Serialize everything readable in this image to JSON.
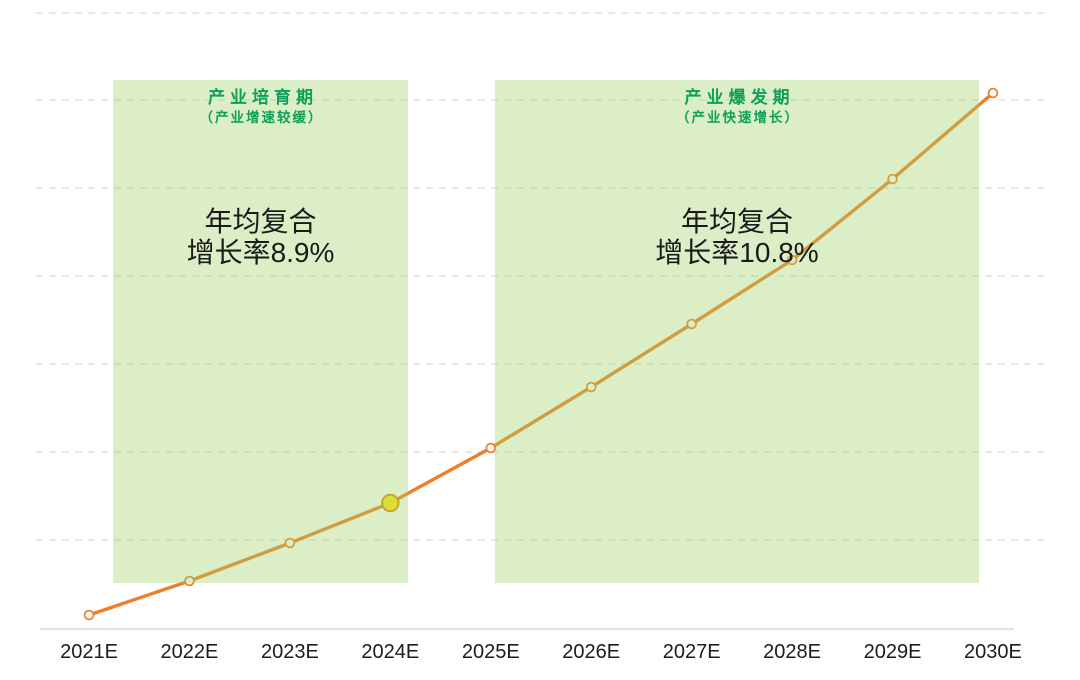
{
  "page": {
    "background": "#ffffff"
  },
  "chart_data": {
    "type": "line",
    "title": "",
    "xlabel": "",
    "ylabel": "",
    "y_axis_visible": false,
    "grid": "horizontal-dashed",
    "legend": "none",
    "categories": [
      "2021E",
      "2022E",
      "2023E",
      "2024E",
      "2025E",
      "2026E",
      "2027E",
      "2028E",
      "2029E",
      "2030E"
    ],
    "values": [
      13,
      47,
      85,
      125,
      180,
      241,
      304,
      368,
      449,
      535
    ],
    "values_scale": "relative (no y-axis labels shown in chart)",
    "highlight_category": "2024E",
    "phases": [
      {
        "title": "产业培育期",
        "subtitle": "（产业增速较缓）",
        "cagr_line1": "年均复合",
        "cagr_line2": "增长率8.9%",
        "category_span": [
          "2021E",
          "2024E"
        ]
      },
      {
        "title": "产业爆发期",
        "subtitle": "（产业快速增长）",
        "cagr_line1": "年均复合",
        "cagr_line2": "增长率10.8%",
        "category_span": [
          "2025E",
          "2029E"
        ]
      }
    ]
  },
  "colors": {
    "line": "#ee7e28",
    "marker_fill": "#ffffff",
    "marker_stroke": "#ee7e28",
    "highlight_marker_fill": "#ffe715",
    "highlight_marker_stroke": "#de8a10",
    "phase_box_fill": "rgba(160,210,105,0.38)",
    "phase_title": "#0da05a",
    "annotation_text": "#1a1a1a",
    "axis_label_text": "#1c1c1c",
    "gridline": "#d9d9d9",
    "axis_line": "#e4e4e4"
  }
}
